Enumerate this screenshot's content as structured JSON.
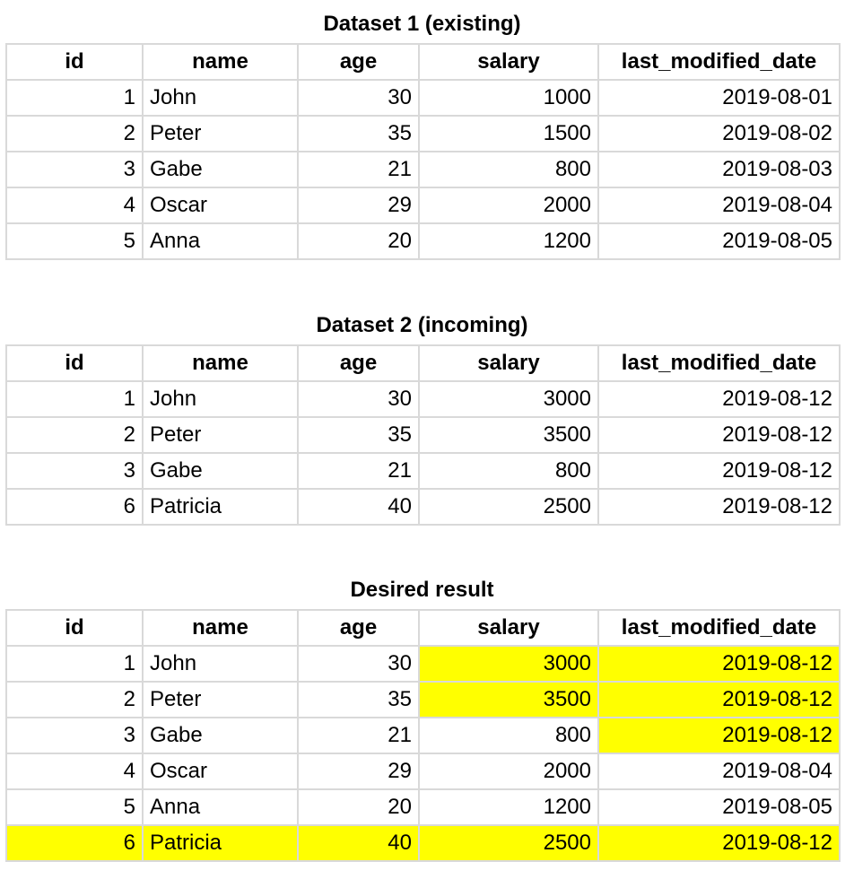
{
  "columns": [
    "id",
    "name",
    "age",
    "salary",
    "last_modified_date"
  ],
  "tables": [
    {
      "title": "Dataset 1 (existing)",
      "rows": [
        {
          "id": "1",
          "name": "John",
          "age": "30",
          "salary": "1000",
          "last_modified_date": "2019-08-01"
        },
        {
          "id": "2",
          "name": "Peter",
          "age": "35",
          "salary": "1500",
          "last_modified_date": "2019-08-02"
        },
        {
          "id": "3",
          "name": "Gabe",
          "age": "21",
          "salary": "800",
          "last_modified_date": "2019-08-03"
        },
        {
          "id": "4",
          "name": "Oscar",
          "age": "29",
          "salary": "2000",
          "last_modified_date": "2019-08-04"
        },
        {
          "id": "5",
          "name": "Anna",
          "age": "20",
          "salary": "1200",
          "last_modified_date": "2019-08-05"
        }
      ]
    },
    {
      "title": "Dataset 2 (incoming)",
      "rows": [
        {
          "id": "1",
          "name": "John",
          "age": "30",
          "salary": "3000",
          "last_modified_date": "2019-08-12"
        },
        {
          "id": "2",
          "name": "Peter",
          "age": "35",
          "salary": "3500",
          "last_modified_date": "2019-08-12"
        },
        {
          "id": "3",
          "name": "Gabe",
          "age": "21",
          "salary": "800",
          "last_modified_date": "2019-08-12"
        },
        {
          "id": "6",
          "name": "Patricia",
          "age": "40",
          "salary": "2500",
          "last_modified_date": "2019-08-12"
        }
      ]
    },
    {
      "title": "Desired result",
      "rows": [
        {
          "id": "1",
          "name": "John",
          "age": "30",
          "salary": "3000",
          "last_modified_date": "2019-08-12",
          "highlight": [
            "salary",
            "last_modified_date"
          ]
        },
        {
          "id": "2",
          "name": "Peter",
          "age": "35",
          "salary": "3500",
          "last_modified_date": "2019-08-12",
          "highlight": [
            "salary",
            "last_modified_date"
          ]
        },
        {
          "id": "3",
          "name": "Gabe",
          "age": "21",
          "salary": "800",
          "last_modified_date": "2019-08-12",
          "highlight": [
            "last_modified_date"
          ]
        },
        {
          "id": "4",
          "name": "Oscar",
          "age": "29",
          "salary": "2000",
          "last_modified_date": "2019-08-04",
          "highlight": []
        },
        {
          "id": "5",
          "name": "Anna",
          "age": "20",
          "salary": "1200",
          "last_modified_date": "2019-08-05",
          "highlight": []
        },
        {
          "id": "6",
          "name": "Patricia",
          "age": "40",
          "salary": "2500",
          "last_modified_date": "2019-08-12",
          "highlight": [
            "id",
            "name",
            "age",
            "salary",
            "last_modified_date"
          ]
        }
      ]
    }
  ],
  "colors": {
    "highlight": "#ffff00",
    "grid": "#d9d9d9"
  }
}
